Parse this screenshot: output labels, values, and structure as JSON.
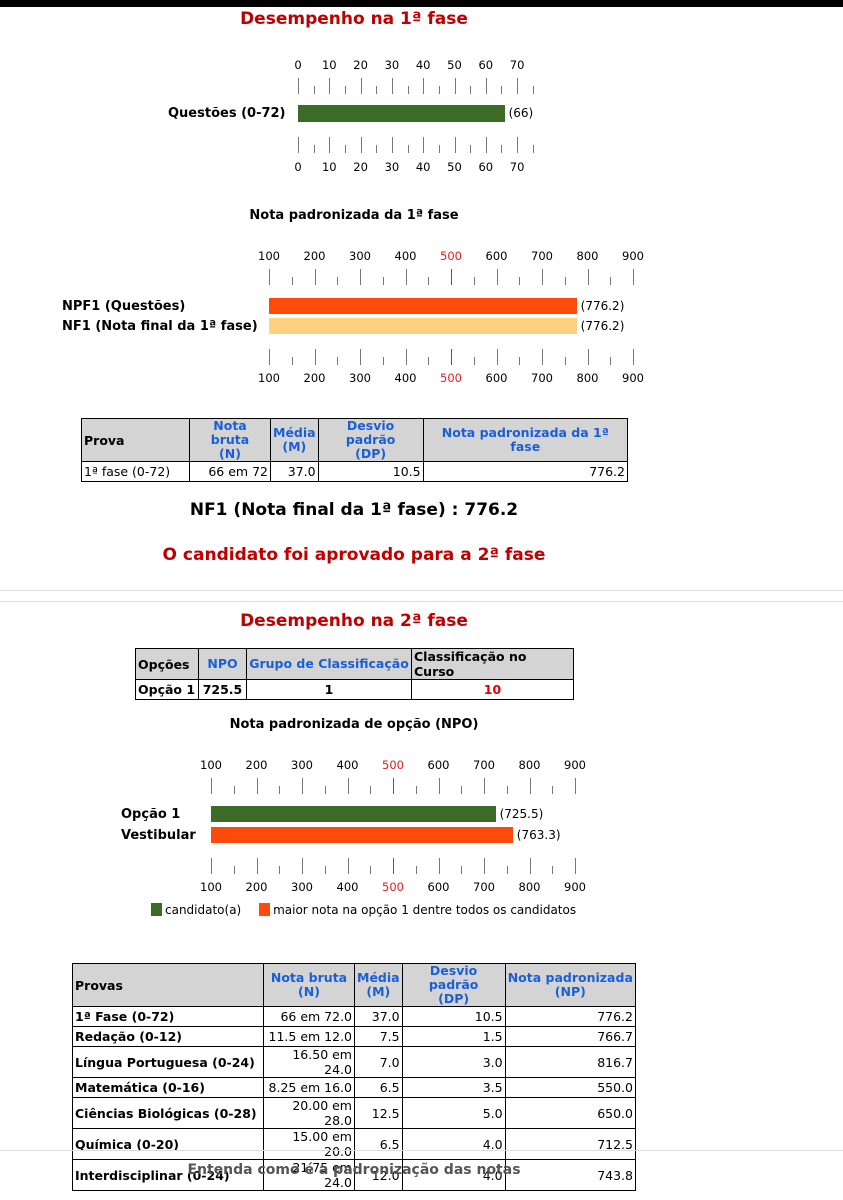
{
  "phase1": {
    "title": "Desempenho na 1ª fase",
    "questions_chart": {
      "ticks": [
        "0",
        "10",
        "20",
        "30",
        "40",
        "50",
        "60",
        "70"
      ],
      "label": "Questões (0-72)",
      "value": 66,
      "value_label": "(66)",
      "color": "#3c6b28"
    },
    "std_chart": {
      "title": "Nota padronizada da 1ª fase",
      "ticks": [
        "100",
        "200",
        "300",
        "400",
        "500",
        "600",
        "700",
        "800",
        "900"
      ],
      "highlight_tick": "500",
      "bars": [
        {
          "label": "NPF1 (Questões)",
          "value": 776.2,
          "value_label": "(776.2)",
          "color": "#ff4a0a"
        },
        {
          "label": "NF1 (Nota final da 1ª fase)",
          "value": 776.2,
          "value_label": "(776.2)",
          "color": "#ffd180"
        }
      ]
    },
    "table": {
      "headers": [
        "Prova",
        "Nota bruta\n(N)",
        "Média\n(M)",
        "Desvio padrão\n(DP)",
        "Nota padronizada da 1ª fase"
      ],
      "rows": [
        [
          "1ª fase (0-72)",
          "66 em 72",
          "37.0",
          "10.5",
          "776.2"
        ]
      ]
    },
    "nf1": "NF1 (Nota final da 1ª fase) : 776.2",
    "approved": "O candidato foi aprovado para a 2ª fase"
  },
  "phase2": {
    "title": "Desempenho na 2ª fase",
    "options_table": {
      "headers": [
        "Opções",
        "NPO",
        "Grupo de Classificação",
        "Classificação no Curso"
      ],
      "rows": [
        [
          "Opção 1",
          "725.5",
          "1",
          "10"
        ]
      ]
    },
    "npo_chart": {
      "title": "Nota padronizada de opção (NPO)",
      "ticks": [
        "100",
        "200",
        "300",
        "400",
        "500",
        "600",
        "700",
        "800",
        "900"
      ],
      "highlight_tick": "500",
      "bars": [
        {
          "label": "Opção 1",
          "value": 725.5,
          "value_label": "(725.5)",
          "color": "#3c6b28"
        },
        {
          "label": "Vestibular",
          "value": 763.3,
          "value_label": "(763.3)",
          "color": "#ff4a0a"
        }
      ]
    },
    "legend": [
      {
        "label": "candidato(a)",
        "color": "#3c6b28"
      },
      {
        "label": "maior nota na opção 1 dentre todos os candidatos",
        "color": "#ff4a0a"
      }
    ],
    "tests_table": {
      "headers": [
        "Provas",
        "Nota bruta\n(N)",
        "Média\n(M)",
        "Desvio padrão\n(DP)",
        "Nota padronizada\n(NP)"
      ],
      "rows": [
        [
          "1ª Fase (0-72)",
          "66 em 72.0",
          "37.0",
          "10.5",
          "776.2"
        ],
        [
          "Redação (0-12)",
          "11.5 em 12.0",
          "7.5",
          "1.5",
          "766.7"
        ],
        [
          "Língua Portuguesa (0-24)",
          "16.50 em 24.0",
          "7.0",
          "3.0",
          "816.7"
        ],
        [
          "Matemática (0-16)",
          "8.25 em 16.0",
          "6.5",
          "3.5",
          "550.0"
        ],
        [
          "Ciências Biológicas (0-28)",
          "20.00 em 28.0",
          "12.5",
          "5.0",
          "650.0"
        ],
        [
          "Química (0-20)",
          "15.00 em 20.0",
          "6.5",
          "4.0",
          "712.5"
        ],
        [
          "Interdisciplinar (0-24)",
          "21.75 em 24.0",
          "12.0",
          "4.0",
          "743.8"
        ]
      ]
    },
    "footer_link": "Entenda como é a padronização das notas"
  }
}
